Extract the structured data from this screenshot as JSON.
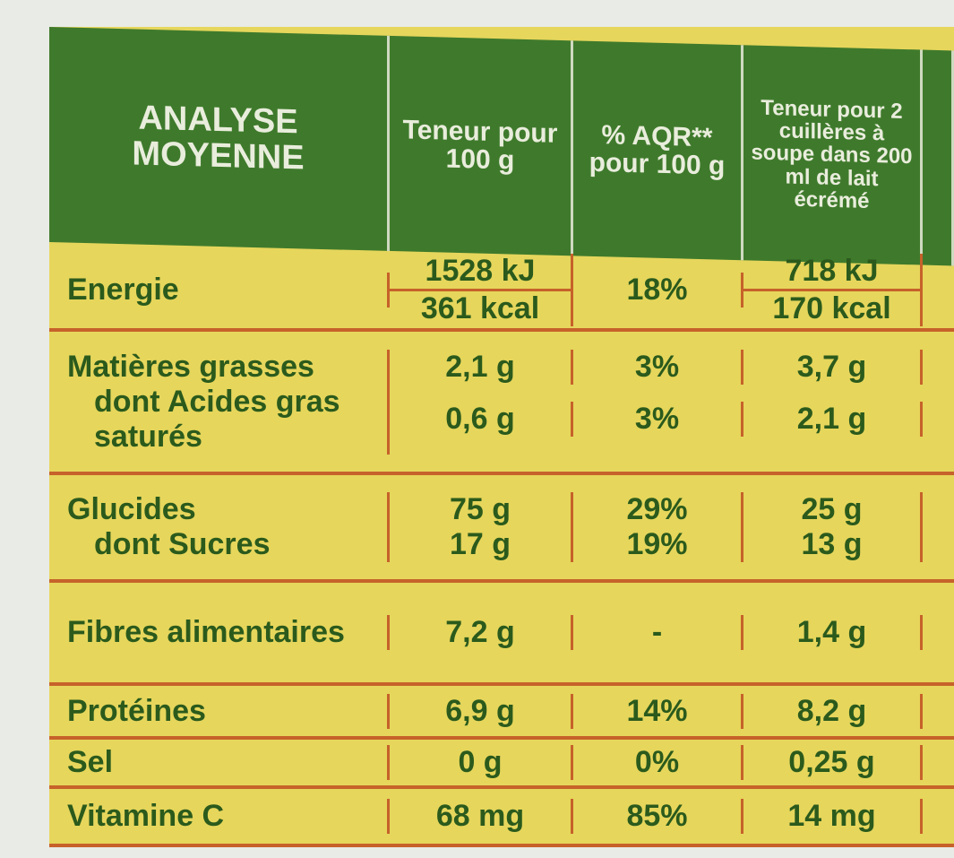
{
  "header": [
    "ANALYSE MOYENNE",
    "Teneur pour 100 g",
    "% AQR** pour 100 g",
    "Teneur pour 2 cuillères à soupe dans 200 ml de lait écrémé"
  ],
  "groups": [
    {
      "rows": [
        [
          "Energie",
          [
            "1528 kJ",
            "361 kcal"
          ],
          "18%",
          [
            "718 kJ",
            "170 kcal"
          ]
        ]
      ]
    },
    {
      "rows": [
        [
          "Matières grasses",
          "2,1 g",
          "3%",
          "3,7 g"
        ],
        [
          "dont Acides gras saturés",
          "0,6 g",
          "3%",
          "2,1 g"
        ]
      ]
    },
    {
      "rows": [
        [
          "Glucides",
          "75 g",
          "29%",
          "25 g"
        ],
        [
          "dont Sucres",
          "17 g",
          "19%",
          "13 g"
        ]
      ]
    },
    {
      "rows": [
        [
          "Fibres alimentaires",
          "7,2 g",
          "-",
          "1,4 g"
        ]
      ]
    },
    {
      "rows": [
        [
          "Protéines",
          "6,9 g",
          "14%",
          "8,2 g"
        ]
      ]
    },
    {
      "rows": [
        [
          "Sel",
          "0 g",
          "0%",
          "0,25 g"
        ]
      ]
    },
    {
      "rows": [
        [
          "Vitamine C",
          "68 mg",
          "85%",
          "14 mg"
        ]
      ]
    }
  ]
}
